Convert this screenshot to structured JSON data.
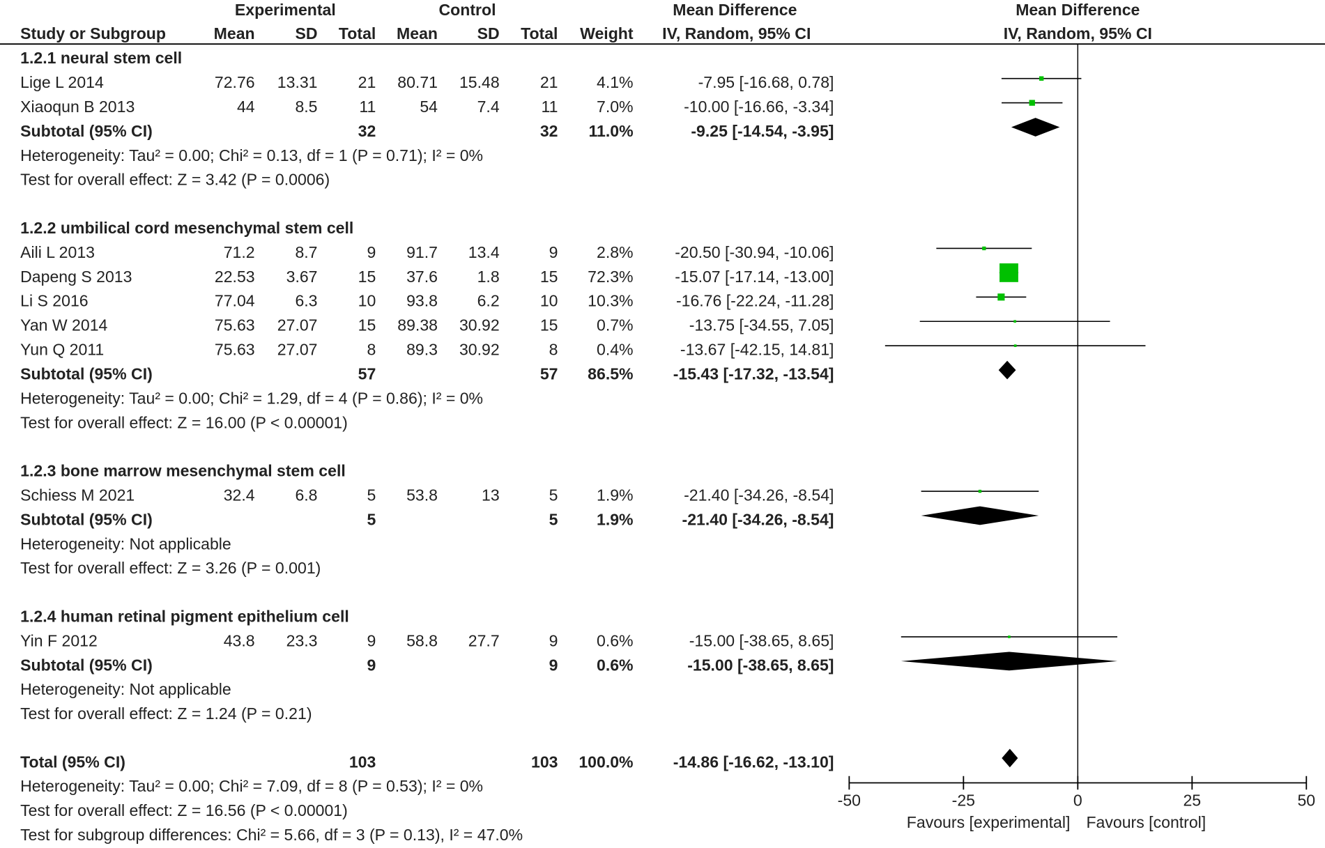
{
  "chart_data": {
    "type": "forest",
    "group_headers": [
      "Experimental",
      "Control",
      "Mean Difference",
      "Mean Difference"
    ],
    "columns": [
      "Study or Subgroup",
      "Mean",
      "SD",
      "Total",
      "Mean",
      "SD",
      "Total",
      "Weight",
      "IV, Random, 95% CI",
      "IV, Random, 95% CI"
    ],
    "study_color": "#00c000",
    "diamond_color": "#000000",
    "subgroups": [
      {
        "title": "1.2.1 neural stem cell",
        "studies": [
          {
            "name": "Lige L 2014",
            "exp_mean": 72.76,
            "exp_sd": 13.31,
            "exp_total": 21,
            "ctl_mean": 80.71,
            "ctl_sd": 15.48,
            "ctl_total": 21,
            "weight": 4.1,
            "weight_label": "4.1%",
            "md": -7.95,
            "ci_low": -16.68,
            "ci_high": 0.78,
            "ci_label": "-7.95 [-16.68, 0.78]"
          },
          {
            "name": "Xiaoqun B 2013",
            "exp_mean": 44,
            "exp_sd": 8.5,
            "exp_total": 11,
            "ctl_mean": 54,
            "ctl_sd": 7.4,
            "ctl_total": 11,
            "weight": 7.0,
            "weight_label": "7.0%",
            "md": -10.0,
            "ci_low": -16.66,
            "ci_high": -3.34,
            "ci_label": "-10.00 [-16.66, -3.34]"
          }
        ],
        "subtotal": {
          "label": "Subtotal (95% CI)",
          "exp_total": 32,
          "ctl_total": 32,
          "weight": 11.0,
          "weight_label": "11.0%",
          "md": -9.25,
          "ci_low": -14.54,
          "ci_high": -3.95,
          "ci_label": "-9.25 [-14.54, -3.95]"
        },
        "heterogeneity": "Heterogeneity: Tau² = 0.00; Chi² = 0.13, df = 1 (P = 0.71); I² = 0%",
        "overall_effect": "Test for overall effect: Z = 3.42 (P = 0.0006)"
      },
      {
        "title": "1.2.2 umbilical cord mesenchymal stem cell",
        "studies": [
          {
            "name": "Aili L 2013",
            "exp_mean": 71.2,
            "exp_sd": 8.7,
            "exp_total": 9,
            "ctl_mean": 91.7,
            "ctl_sd": 13.4,
            "ctl_total": 9,
            "weight": 2.8,
            "weight_label": "2.8%",
            "md": -20.5,
            "ci_low": -30.94,
            "ci_high": -10.06,
            "ci_label": "-20.50 [-30.94, -10.06]"
          },
          {
            "name": "Dapeng S 2013",
            "exp_mean": 22.53,
            "exp_sd": 3.67,
            "exp_total": 15,
            "ctl_mean": 37.6,
            "ctl_sd": 1.8,
            "ctl_total": 15,
            "weight": 72.3,
            "weight_label": "72.3%",
            "md": -15.07,
            "ci_low": -17.14,
            "ci_high": -13.0,
            "ci_label": "-15.07 [-17.14, -13.00]"
          },
          {
            "name": "Li S 2016",
            "exp_mean": 77.04,
            "exp_sd": 6.3,
            "exp_total": 10,
            "ctl_mean": 93.8,
            "ctl_sd": 6.2,
            "ctl_total": 10,
            "weight": 10.3,
            "weight_label": "10.3%",
            "md": -16.76,
            "ci_low": -22.24,
            "ci_high": -11.28,
            "ci_label": "-16.76 [-22.24, -11.28]"
          },
          {
            "name": "Yan W  2014",
            "exp_mean": 75.63,
            "exp_sd": 27.07,
            "exp_total": 15,
            "ctl_mean": 89.38,
            "ctl_sd": 30.92,
            "ctl_total": 15,
            "weight": 0.7,
            "weight_label": "0.7%",
            "md": -13.75,
            "ci_low": -34.55,
            "ci_high": 7.05,
            "ci_label": "-13.75 [-34.55, 7.05]"
          },
          {
            "name": "Yun Q 2011",
            "exp_mean": 75.63,
            "exp_sd": 27.07,
            "exp_total": 8,
            "ctl_mean": 89.3,
            "ctl_sd": 30.92,
            "ctl_total": 8,
            "weight": 0.4,
            "weight_label": "0.4%",
            "md": -13.67,
            "ci_low": -42.15,
            "ci_high": 14.81,
            "ci_label": "-13.67 [-42.15, 14.81]"
          }
        ],
        "subtotal": {
          "label": "Subtotal (95% CI)",
          "exp_total": 57,
          "ctl_total": 57,
          "weight": 86.5,
          "weight_label": "86.5%",
          "md": -15.43,
          "ci_low": -17.32,
          "ci_high": -13.54,
          "ci_label": "-15.43 [-17.32, -13.54]"
        },
        "heterogeneity": "Heterogeneity: Tau² = 0.00; Chi² = 1.29, df = 4 (P = 0.86); I² = 0%",
        "overall_effect": "Test for overall effect: Z = 16.00 (P < 0.00001)"
      },
      {
        "title": "1.2.3 bone marrow mesenchymal stem cell",
        "studies": [
          {
            "name": "Schiess M 2021",
            "exp_mean": 32.4,
            "exp_sd": 6.8,
            "exp_total": 5,
            "ctl_mean": 53.8,
            "ctl_sd": 13,
            "ctl_total": 5,
            "weight": 1.9,
            "weight_label": "1.9%",
            "md": -21.4,
            "ci_low": -34.26,
            "ci_high": -8.54,
            "ci_label": "-21.40 [-34.26, -8.54]"
          }
        ],
        "subtotal": {
          "label": "Subtotal (95% CI)",
          "exp_total": 5,
          "ctl_total": 5,
          "weight": 1.9,
          "weight_label": "1.9%",
          "md": -21.4,
          "ci_low": -34.26,
          "ci_high": -8.54,
          "ci_label": "-21.40 [-34.26, -8.54]"
        },
        "heterogeneity": "Heterogeneity: Not applicable",
        "overall_effect": "Test for overall effect: Z = 3.26 (P = 0.001)"
      },
      {
        "title": "1.2.4 human retinal pigment epithelium cell",
        "studies": [
          {
            "name": "Yin F 2012",
            "exp_mean": 43.8,
            "exp_sd": 23.3,
            "exp_total": 9,
            "ctl_mean": 58.8,
            "ctl_sd": 27.7,
            "ctl_total": 9,
            "weight": 0.6,
            "weight_label": "0.6%",
            "md": -15.0,
            "ci_low": -38.65,
            "ci_high": 8.65,
            "ci_label": "-15.00 [-38.65, 8.65]"
          }
        ],
        "subtotal": {
          "label": "Subtotal (95% CI)",
          "exp_total": 9,
          "ctl_total": 9,
          "weight": 0.6,
          "weight_label": "0.6%",
          "md": -15.0,
          "ci_low": -38.65,
          "ci_high": 8.65,
          "ci_label": "-15.00 [-38.65, 8.65]"
        },
        "heterogeneity": "Heterogeneity: Not applicable",
        "overall_effect": "Test for overall effect: Z = 1.24 (P = 0.21)"
      }
    ],
    "total": {
      "label": "Total (95% CI)",
      "exp_total": 103,
      "ctl_total": 103,
      "weight": 100.0,
      "weight_label": "100.0%",
      "md": -14.86,
      "ci_low": -16.62,
      "ci_high": -13.1,
      "ci_label": "-14.86 [-16.62, -13.10]"
    },
    "total_notes": [
      "Heterogeneity: Tau² = 0.00; Chi² = 7.09, df = 8 (P = 0.53); I² = 0%",
      "Test for overall effect: Z = 16.56 (P < 0.00001)",
      "Test for subgroup differences: Chi² = 5.66, df = 3 (P = 0.13), I² = 47.0%"
    ],
    "xlim": [
      -50,
      50
    ],
    "xticks": [
      -50,
      -25,
      0,
      25,
      50
    ],
    "x_labels": [
      "Favours [experimental]",
      "Favours [control]"
    ]
  }
}
